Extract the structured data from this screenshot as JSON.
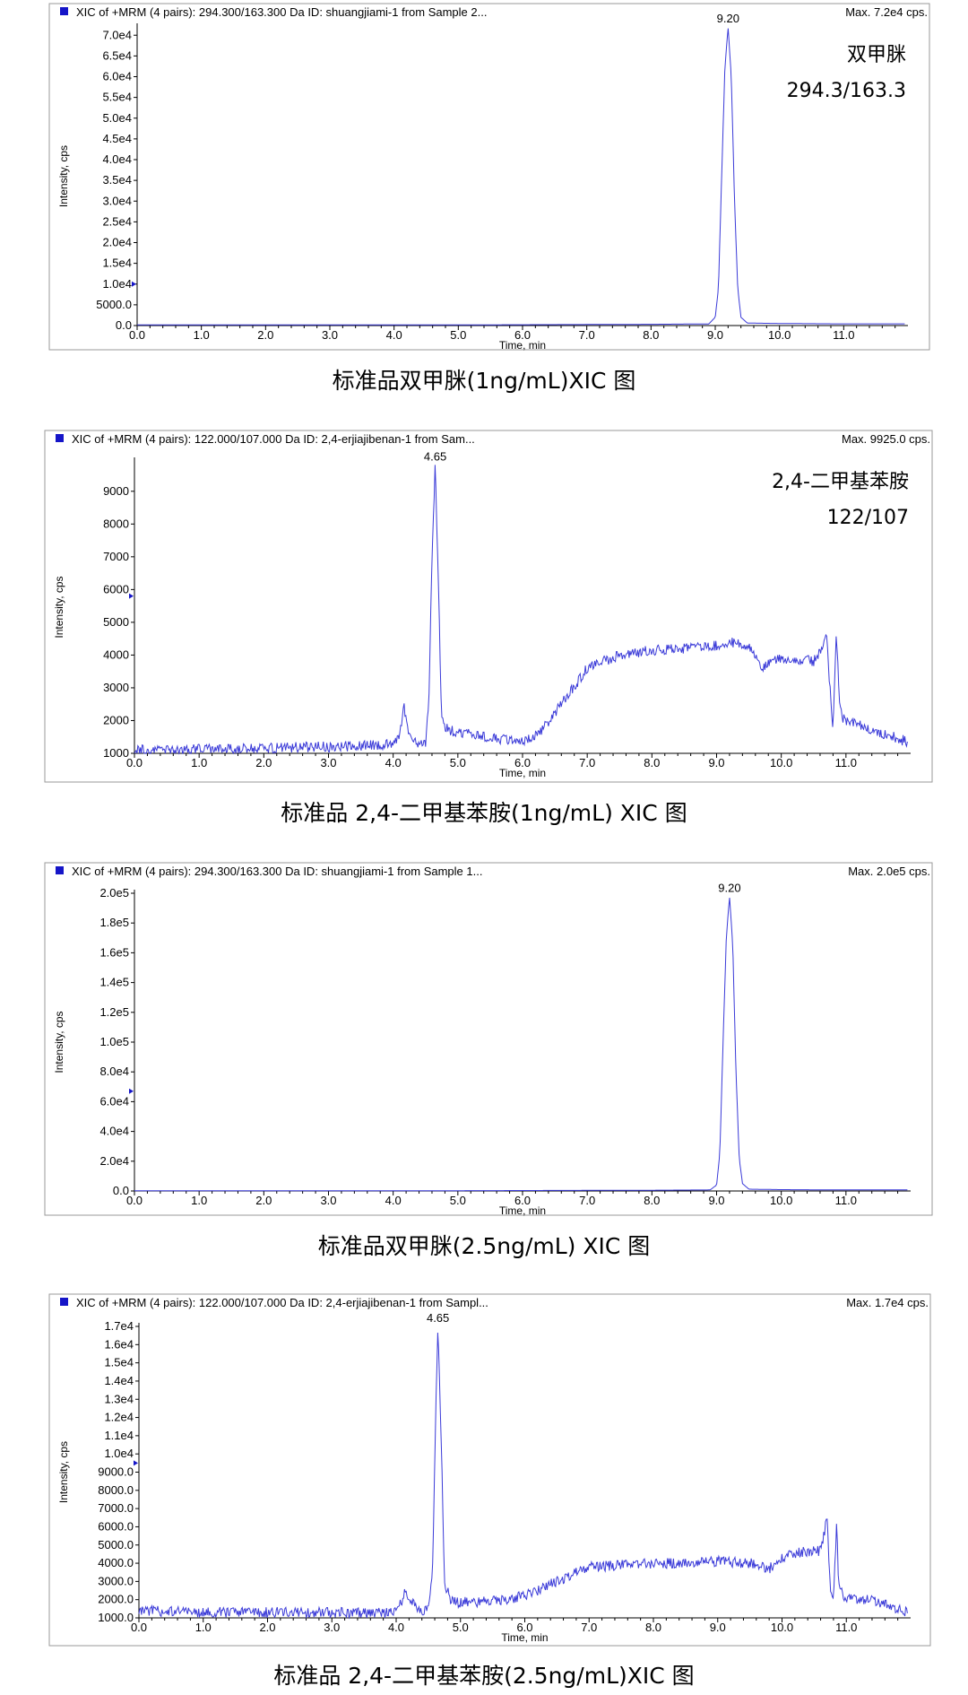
{
  "chart_data": [
    {
      "type": "line",
      "header": "XIC of +MRM (4 pairs): 294.300/163.300 Da ID: shuangjiami-1 from Sample 2...",
      "max_label": "Max. 7.2e4 cps.",
      "xlabel": "Time, min",
      "ylabel": "Intensity, cps",
      "xlim": [
        0,
        12
      ],
      "ylim": [
        0,
        72000
      ],
      "xticks": [
        0,
        1,
        2,
        3,
        4,
        5,
        6,
        7,
        8,
        9,
        10,
        11
      ],
      "xtick_labels": [
        "0.0",
        "1.0",
        "2.0",
        "3.0",
        "4.0",
        "5.0",
        "6.0",
        "7.0",
        "8.0",
        "9.0",
        "10.0",
        "11.0"
      ],
      "yticks": [
        0,
        5000,
        10000,
        15000,
        20000,
        25000,
        30000,
        35000,
        40000,
        45000,
        50000,
        55000,
        60000,
        65000,
        70000
      ],
      "ytick_labels": [
        "0.0",
        "5000.0",
        "1.0e4",
        "1.5e4",
        "2.0e4",
        "2.5e4",
        "3.0e4",
        "3.5e4",
        "4.0e4",
        "4.5e4",
        "5.0e4",
        "5.5e4",
        "6.0e4",
        "6.5e4",
        "7.0e4"
      ],
      "marker_y": 10000,
      "peak_label": "9.20",
      "peak_x": 9.2,
      "annotations": [
        "双甲脒",
        "294.3/163.3"
      ],
      "series": [
        {
          "x": [
            0,
            1,
            2,
            3,
            4,
            5,
            6,
            7,
            8,
            8.9,
            9.0,
            9.05,
            9.1,
            9.15,
            9.2,
            9.25,
            9.3,
            9.35,
            9.4,
            9.5,
            10,
            11,
            11.95
          ],
          "y": [
            150,
            150,
            150,
            150,
            150,
            150,
            200,
            250,
            300,
            400,
            2000,
            9000,
            36000,
            62000,
            72000,
            60000,
            30000,
            9000,
            2000,
            600,
            500,
            400,
            400
          ]
        }
      ]
    },
    {
      "type": "line",
      "header": "XIC of +MRM (4 pairs): 122.000/107.000 Da ID: 2,4-erjiajibenan-1 from Sam...",
      "max_label": "Max. 9925.0 cps.",
      "xlabel": "Time, min",
      "ylabel": "Intensity, cps",
      "xlim": [
        0,
        12
      ],
      "ylim": [
        1000,
        9925
      ],
      "xticks": [
        0,
        1,
        2,
        3,
        4,
        5,
        6,
        7,
        8,
        9,
        10,
        11
      ],
      "xtick_labels": [
        "0.0",
        "1.0",
        "2.0",
        "3.0",
        "4.0",
        "5.0",
        "6.0",
        "7.0",
        "8.0",
        "9.0",
        "10.0",
        "11.0"
      ],
      "yticks": [
        1000,
        2000,
        3000,
        4000,
        5000,
        6000,
        7000,
        8000,
        9000
      ],
      "ytick_labels": [
        "1000",
        "2000",
        "3000",
        "4000",
        "5000",
        "6000",
        "7000",
        "8000",
        "9000"
      ],
      "marker_y": 5800,
      "peak_label": "4.65",
      "peak_x": 4.65,
      "annotations": [
        "2,4-二甲基苯胺",
        "122/107"
      ],
      "series": [
        {
          "x": [
            0,
            0.5,
            1,
            1.5,
            2,
            2.5,
            3,
            3.5,
            4.0,
            4.1,
            4.17,
            4.25,
            4.35,
            4.5,
            4.55,
            4.6,
            4.65,
            4.7,
            4.75,
            4.85,
            5.0,
            5.5,
            6.0,
            6.3,
            6.6,
            7.0,
            7.5,
            8.0,
            8.5,
            9.0,
            9.3,
            9.5,
            9.7,
            9.9,
            10.2,
            10.5,
            10.7,
            10.8,
            10.85,
            10.9,
            10.95,
            11.0,
            11.5,
            11.95
          ],
          "y": [
            1100,
            1100,
            1120,
            1130,
            1150,
            1180,
            1200,
            1220,
            1300,
            1600,
            2400,
            1500,
            1300,
            1300,
            2500,
            7000,
            9800,
            6000,
            2000,
            1700,
            1650,
            1450,
            1350,
            1700,
            2500,
            3600,
            4000,
            4150,
            4200,
            4300,
            4400,
            4300,
            3600,
            3900,
            3900,
            3800,
            4500,
            1700,
            4700,
            2500,
            2100,
            2000,
            1650,
            1350
          ]
        }
      ]
    },
    {
      "type": "line",
      "header": "XIC of +MRM (4 pairs): 294.300/163.300 Da ID: shuangjiami-1 from Sample 1...",
      "max_label": "Max. 2.0e5 cps.",
      "xlabel": "Time, min",
      "ylabel": "Intensity, cps",
      "xlim": [
        0,
        12
      ],
      "ylim": [
        0,
        200000
      ],
      "xticks": [
        0,
        1,
        2,
        3,
        4,
        5,
        6,
        7,
        8,
        9,
        10,
        11
      ],
      "xtick_labels": [
        "0.0",
        "1.0",
        "2.0",
        "3.0",
        "4.0",
        "5.0",
        "6.0",
        "7.0",
        "8.0",
        "9.0",
        "10.0",
        "11.0"
      ],
      "yticks": [
        0,
        20000,
        40000,
        60000,
        80000,
        100000,
        120000,
        140000,
        160000,
        180000,
        200000
      ],
      "ytick_labels": [
        "0.0",
        "2.0e4",
        "4.0e4",
        "6.0e4",
        "8.0e4",
        "1.0e5",
        "1.2e5",
        "1.4e5",
        "1.6e5",
        "1.8e5",
        "2.0e5"
      ],
      "marker_y": 67000,
      "peak_label": "9.20",
      "peak_x": 9.2,
      "annotations": [],
      "series": [
        {
          "x": [
            0,
            1,
            2,
            3,
            4,
            5,
            6,
            7,
            8,
            8.9,
            9.0,
            9.05,
            9.1,
            9.15,
            9.2,
            9.25,
            9.3,
            9.35,
            9.4,
            9.5,
            10,
            11,
            11.95
          ],
          "y": [
            200,
            200,
            200,
            200,
            200,
            200,
            300,
            400,
            500,
            700,
            4000,
            25000,
            100000,
            170000,
            198000,
            165000,
            80000,
            22000,
            5000,
            1200,
            900,
            700,
            700
          ]
        }
      ]
    },
    {
      "type": "line",
      "header": "XIC of +MRM (4 pairs): 122.000/107.000 Da ID: 2,4-erjiajibenan-1 from Sampl...",
      "max_label": "Max. 1.7e4 cps.",
      "xlabel": "Time, min",
      "ylabel": "Intensity, cps",
      "xlim": [
        0,
        12
      ],
      "ylim": [
        1000,
        17000
      ],
      "xticks": [
        0,
        1,
        2,
        3,
        4,
        5,
        6,
        7,
        8,
        9,
        10,
        11
      ],
      "xtick_labels": [
        "0.0",
        "1.0",
        "2.0",
        "3.0",
        "4.0",
        "5.0",
        "6.0",
        "7.0",
        "8.0",
        "9.0",
        "10.0",
        "11.0"
      ],
      "yticks": [
        1000,
        2000,
        3000,
        4000,
        5000,
        6000,
        7000,
        8000,
        9000,
        10000,
        11000,
        12000,
        13000,
        14000,
        15000,
        16000,
        17000
      ],
      "ytick_labels": [
        "1000.0",
        "2000.0",
        "3000.0",
        "4000.0",
        "5000.0",
        "6000.0",
        "7000.0",
        "8000.0",
        "9000.0",
        "1.0e4",
        "1.1e4",
        "1.2e4",
        "1.3e4",
        "1.4e4",
        "1.5e4",
        "1.6e4",
        "1.7e4"
      ],
      "marker_y": 9500,
      "peak_label": "4.65",
      "peak_x": 4.65,
      "annotations": [],
      "series": [
        {
          "x": [
            0,
            0.5,
            1,
            1.5,
            2,
            2.5,
            3,
            3.5,
            3.9,
            4.05,
            4.15,
            4.25,
            4.35,
            4.5,
            4.57,
            4.62,
            4.65,
            4.7,
            4.75,
            4.85,
            5.0,
            5.5,
            6.0,
            6.5,
            7.0,
            7.5,
            8.0,
            8.5,
            9.0,
            9.5,
            9.8,
            10.0,
            10.3,
            10.6,
            10.7,
            10.75,
            10.8,
            10.85,
            10.88,
            10.95,
            11.0,
            11.5,
            11.95
          ],
          "y": [
            1400,
            1350,
            1320,
            1300,
            1300,
            1310,
            1300,
            1280,
            1250,
            1600,
            2500,
            1800,
            1400,
            1500,
            4000,
            13000,
            17000,
            11000,
            3000,
            1900,
            1850,
            1900,
            2200,
            3000,
            3800,
            3900,
            4000,
            4000,
            4100,
            4000,
            3700,
            4300,
            4600,
            4700,
            6500,
            2600,
            2200,
            6200,
            3000,
            2200,
            2100,
            1900,
            1300
          ]
        }
      ]
    }
  ],
  "captions": [
    "标准品双甲脒(1ng/mL)XIC 图",
    "标准品 2,4-二甲基苯胺(1ng/mL) XIC 图",
    "标准品双甲脒(2.5ng/mL) XIC 图",
    "标准品 2,4-二甲基苯胺(2.5ng/mL)XIC 图"
  ],
  "colors": {
    "trace": "#3a3ad8",
    "legend_square": "#1515c8",
    "frame": "#9a9a9a",
    "axis": "#000000"
  }
}
